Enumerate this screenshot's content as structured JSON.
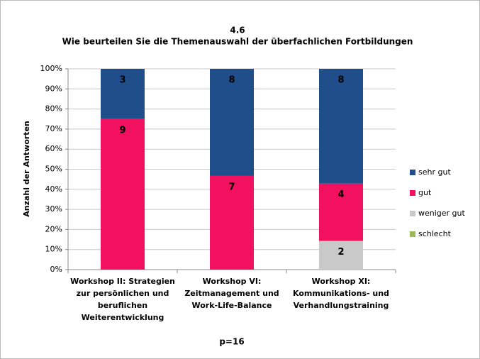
{
  "chart_data": {
    "type": "bar",
    "stacking": "percent",
    "title": "4.6",
    "subtitle": "Wie beurteilen Sie die Themenauswahl der überfachlichen Fortbildungen",
    "y_label": "Anzahl der Antworten",
    "annotation": "p=16",
    "categories": [
      "Workshop II: Strategien zur persönlichen und beruflichen Weiterentwicklung",
      "Workshop VI: Zeitmanagement und Work-Life-Balance",
      "Workshop XI: Kommunikations- und Verhandlungstraining"
    ],
    "series": [
      {
        "name": "schlecht",
        "color": "#9bbb59",
        "label_color": "#ffffff",
        "values": [
          0,
          0,
          0
        ]
      },
      {
        "name": "weniger gut",
        "color": "#c9c9c9",
        "label_color": "#222222",
        "values": [
          0,
          0,
          2
        ]
      },
      {
        "name": "gut",
        "color": "#f2115e",
        "label_color": "#ffffff",
        "values": [
          9,
          7,
          4
        ]
      },
      {
        "name": "sehr gut",
        "color": "#1f4e8a",
        "label_color": "#ffffff",
        "values": [
          3,
          8,
          8
        ]
      }
    ],
    "ylim": [
      0,
      100
    ],
    "yticks": [
      {
        "value": 0,
        "label": "0%"
      },
      {
        "value": 10,
        "label": "10%"
      },
      {
        "value": 20,
        "label": "20%"
      },
      {
        "value": 30,
        "label": "30%"
      },
      {
        "value": 40,
        "label": "40%"
      },
      {
        "value": 50,
        "label": "50%"
      },
      {
        "value": 60,
        "label": "60%"
      },
      {
        "value": 70,
        "label": "70%"
      },
      {
        "value": 80,
        "label": "80%"
      },
      {
        "value": 90,
        "label": "90%"
      },
      {
        "value": 100,
        "label": "100%"
      }
    ],
    "grid": true,
    "legend": "right"
  }
}
